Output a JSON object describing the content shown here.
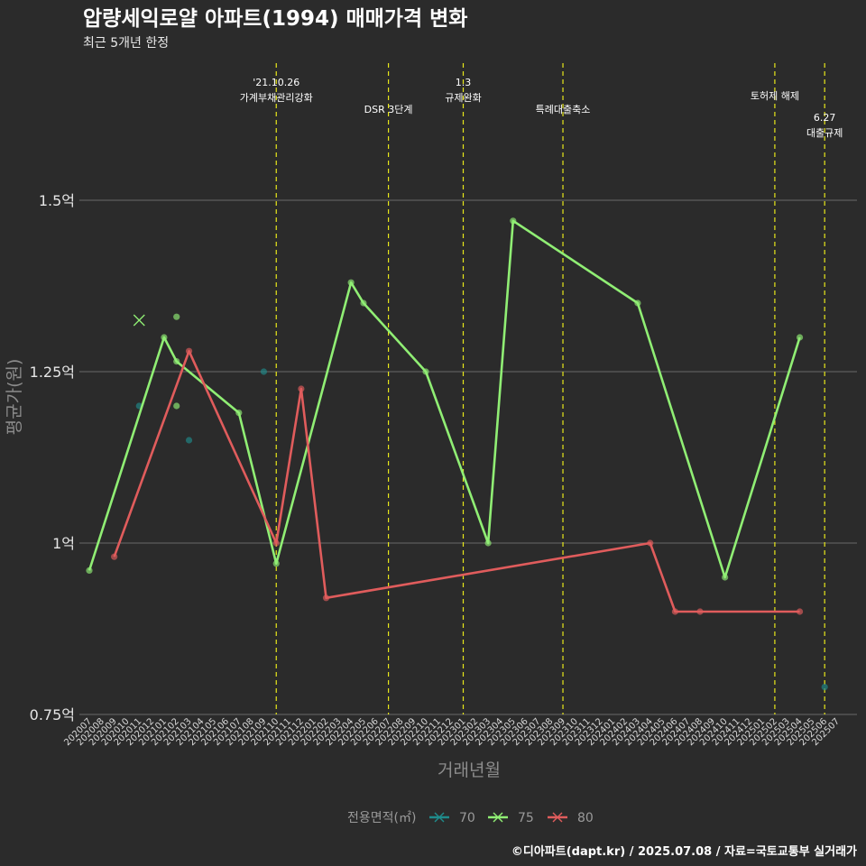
{
  "chart_data": {
    "type": "line",
    "title": "압량세익로얄 아파트(1994) 매매가격 변화",
    "subtitle": "최근 5개년 한정",
    "xlabel": "거래년월",
    "ylabel": "평균가(원)",
    "ylim": [
      0.75,
      1.55
    ],
    "y_ticks": [
      {
        "value": 0.75,
        "label": "0.75억"
      },
      {
        "value": 1.0,
        "label": "1억"
      },
      {
        "value": 1.25,
        "label": "1.25억"
      },
      {
        "value": 1.5,
        "label": "1.5억"
      }
    ],
    "grid": true,
    "categories": [
      "202007",
      "202008",
      "202009",
      "202010",
      "202011",
      "202012",
      "202101",
      "202102",
      "202103",
      "202104",
      "202105",
      "202106",
      "202107",
      "202108",
      "202109",
      "202110",
      "202111",
      "202112",
      "202201",
      "202202",
      "202203",
      "202204",
      "202205",
      "202206",
      "202207",
      "202208",
      "202209",
      "202210",
      "202211",
      "202212",
      "202301",
      "202302",
      "202303",
      "202304",
      "202305",
      "202306",
      "202307",
      "202308",
      "202309",
      "202310",
      "202311",
      "202312",
      "202401",
      "202402",
      "202403",
      "202404",
      "202405",
      "202406",
      "202407",
      "202408",
      "202409",
      "202410",
      "202411",
      "202412",
      "202501",
      "202502",
      "202503",
      "202504",
      "202505",
      "202506",
      "202507"
    ],
    "series": [
      {
        "name": "70",
        "color": "#1f8b8b",
        "show_line": false,
        "points": [
          [
            "202011",
            1.2
          ],
          [
            "202103",
            1.15
          ],
          [
            "202109",
            1.25
          ],
          [
            "202506",
            0.79
          ]
        ]
      },
      {
        "name": "75",
        "color": "#90ee74",
        "show_line": true,
        "points": [
          [
            "202007",
            0.96
          ],
          [
            "202101",
            1.3
          ],
          [
            "202102",
            1.265
          ],
          [
            "202107",
            1.19
          ],
          [
            "202110",
            0.97
          ],
          [
            "202204",
            1.38
          ],
          [
            "202205",
            1.35
          ],
          [
            "202210",
            1.25
          ],
          [
            "202303",
            1.0
          ],
          [
            "202305",
            1.47
          ],
          [
            "202403",
            1.35
          ],
          [
            "202410",
            0.95
          ],
          [
            "202504",
            1.3
          ]
        ],
        "extra_points": [
          [
            "202102",
            1.33
          ],
          [
            "202102",
            1.2
          ]
        ]
      },
      {
        "name": "80",
        "color": "#e05c5c",
        "show_line": true,
        "points": [
          [
            "202009",
            0.98
          ],
          [
            "202103",
            1.28
          ],
          [
            "202110",
            1.0
          ],
          [
            "202112",
            1.225
          ],
          [
            "202202",
            0.92
          ],
          [
            "202404",
            1.0
          ],
          [
            "202406",
            0.9
          ],
          [
            "202408",
            0.9
          ],
          [
            "202504",
            0.9
          ]
        ]
      }
    ],
    "x_marker": {
      "x": "202011",
      "y": 1.325,
      "series": "75"
    },
    "events": [
      {
        "x": "202110",
        "lines": [
          "'21.10.26",
          "가계부채관리강화"
        ],
        "level": 0
      },
      {
        "x": "202207",
        "lines": [
          "DSR 3단계"
        ],
        "level": 1
      },
      {
        "x": "202301",
        "lines": [
          "1.3",
          "규제완화"
        ],
        "level": 0
      },
      {
        "x": "202309",
        "lines": [
          "특례대출축소"
        ],
        "level": 1
      },
      {
        "x": "202502",
        "lines": [
          "토허제 해제"
        ],
        "level": 0.5
      },
      {
        "x": "202506",
        "lines": [
          "6.27",
          "대출규제"
        ],
        "level": 1.3
      }
    ],
    "event_line_color": "#e8e81a",
    "legend": {
      "title": "전용면적(㎡)",
      "placement": "bottom",
      "items": [
        "70",
        "75",
        "80"
      ]
    },
    "caption": "©디아파트(dapt.kr) / 2025.07.08 / 자료=국토교통부 실거래가"
  }
}
